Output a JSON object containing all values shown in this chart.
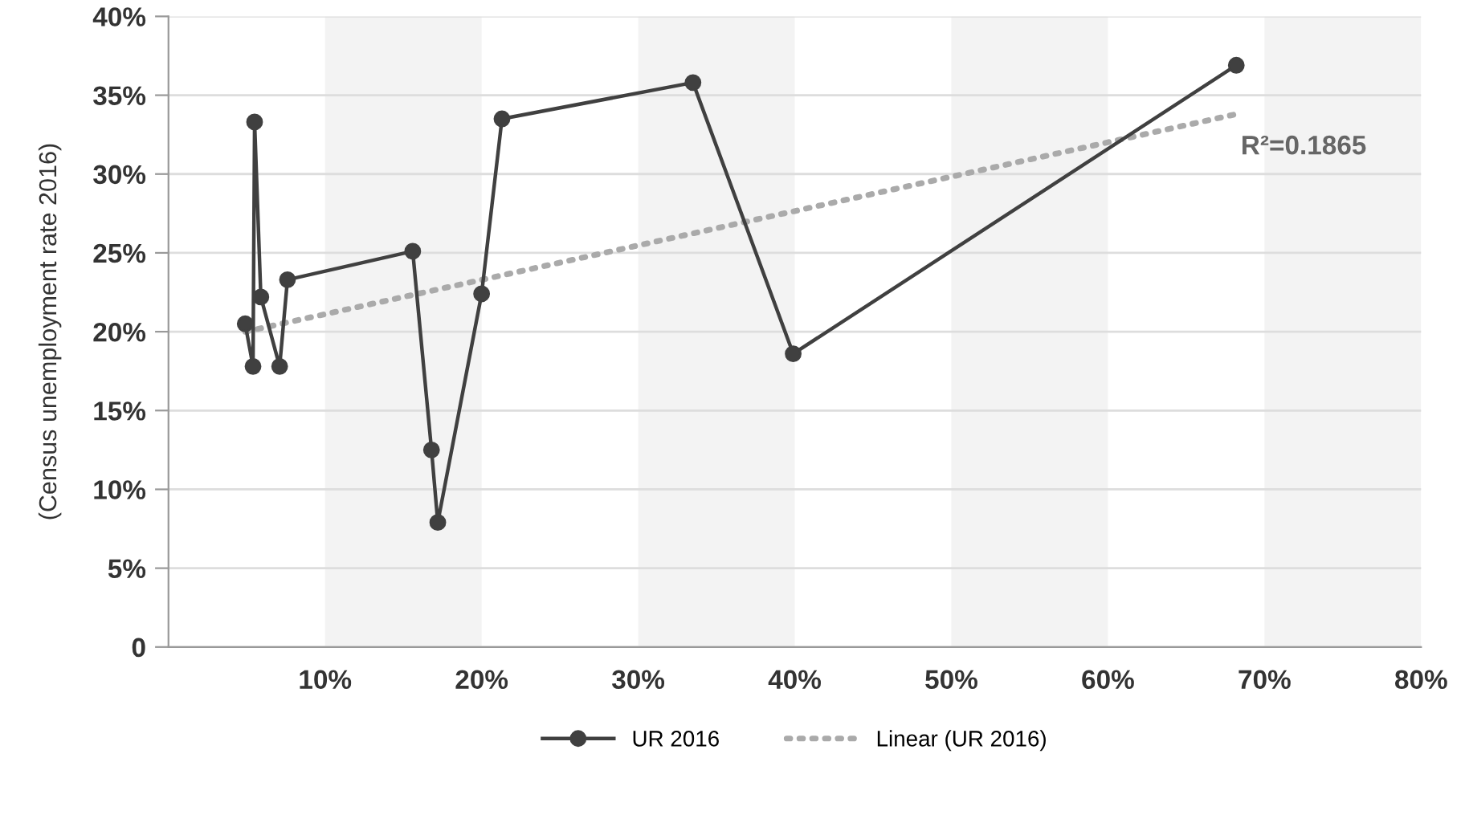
{
  "chart_data": {
    "type": "line",
    "ylabel": "(Census unemployment rate 2016)",
    "xlim": [
      0,
      80
    ],
    "xticks": [
      {
        "value": 10,
        "label": "10%"
      },
      {
        "value": 20,
        "label": "20%"
      },
      {
        "value": 30,
        "label": "30%"
      },
      {
        "value": 40,
        "label": "40%"
      },
      {
        "value": 50,
        "label": "50%"
      },
      {
        "value": 60,
        "label": "60%"
      },
      {
        "value": 70,
        "label": "70%"
      },
      {
        "value": 80,
        "label": "80%"
      }
    ],
    "ylim": [
      0,
      40
    ],
    "yticks": [
      0,
      {
        "value": 5,
        "label": "5%"
      },
      {
        "value": 10,
        "label": "10%"
      },
      {
        "value": 15,
        "label": "15%"
      },
      {
        "value": 20,
        "label": "20%"
      },
      {
        "value": 25,
        "label": "25%"
      },
      {
        "value": 30,
        "label": "30%"
      },
      {
        "value": 35,
        "label": "35%"
      },
      {
        "value": 40,
        "label": "40%"
      }
    ],
    "grid": "y",
    "legend": "bottom",
    "bands": [
      {
        "axis": "x",
        "from": 10,
        "to": 20,
        "color": "#f3f3f3"
      },
      {
        "axis": "x",
        "from": 30,
        "to": 40,
        "color": "#f3f3f3"
      },
      {
        "axis": "x",
        "from": 50,
        "to": 60,
        "color": "#f3f3f3"
      },
      {
        "axis": "x",
        "from": 70,
        "to": 80,
        "color": "#f3f3f3"
      }
    ],
    "series": [
      {
        "name": "UR 2016",
        "color": "#404040",
        "marker": "circle",
        "line_style": "solid",
        "x": [
          4.9,
          5.4,
          5.5,
          5.9,
          7.1,
          7.6,
          15.6,
          16.8,
          17.2,
          20.0,
          21.3,
          33.5,
          39.9,
          68.2
        ],
        "values": [
          20.5,
          17.8,
          33.3,
          22.2,
          17.8,
          23.3,
          25.1,
          12.5,
          7.9,
          22.4,
          33.5,
          35.8,
          18.6,
          36.9
        ]
      },
      {
        "name": "Linear (UR 2016)",
        "color": "#aaaaaa",
        "marker": "none",
        "line_style": "dotted",
        "x": [
          4.9,
          68.2
        ],
        "values": [
          20.0,
          33.8
        ]
      }
    ],
    "annotations": [
      {
        "text": "R²=0.1865",
        "x": 68.2,
        "y": 33.8
      }
    ]
  }
}
